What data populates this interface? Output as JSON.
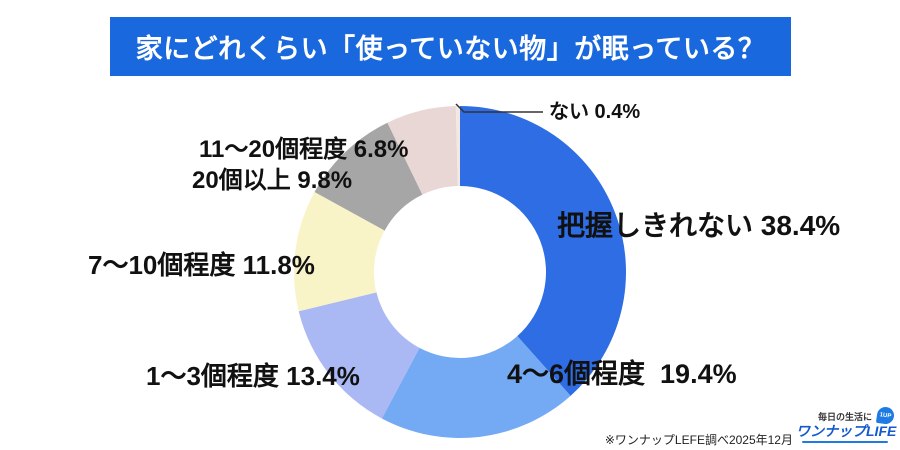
{
  "header": {
    "title": "家にどれくらい「使っていない物」が眠っている？",
    "bg_color": "#1a68dd"
  },
  "chart_data": {
    "type": "pie",
    "variant": "donut",
    "title": "家にどれくらい「使っていない物」が眠っている？",
    "start_angle_deg": -90,
    "clockwise": true,
    "legend_position": "around-labels",
    "segments": [
      {
        "label": "把握しきれない",
        "value": 38.4,
        "display": "把握しきれない 38.4%",
        "color": "#2e6de4"
      },
      {
        "label": "4〜6個程度",
        "value": 19.4,
        "display": "4〜6個程度  19.4%",
        "color": "#74a9f4"
      },
      {
        "label": "1〜3個程度",
        "value": 13.4,
        "display": "1〜3個程度 13.4%",
        "color": "#aab8f3"
      },
      {
        "label": "7〜10個程度",
        "value": 11.8,
        "display": "7〜10個程度 11.8%",
        "color": "#f9f4c8"
      },
      {
        "label": "20個以上",
        "value": 9.8,
        "display": "20個以上 9.8%",
        "color": "#a6a6a6"
      },
      {
        "label": "11〜20個程度",
        "value": 6.8,
        "display": "11〜20個程度 6.8%",
        "color": "#e9d7d5"
      },
      {
        "label": "ない",
        "value": 0.4,
        "display": "ない 0.4%",
        "color": "#f3e9e4"
      }
    ]
  },
  "footer": {
    "source_note": "※ワンナップLEFE調べ2025年12月",
    "logo": {
      "tagline": "毎日の生活に",
      "brand": "ワンナップLIFE",
      "badge": "1UP"
    }
  }
}
